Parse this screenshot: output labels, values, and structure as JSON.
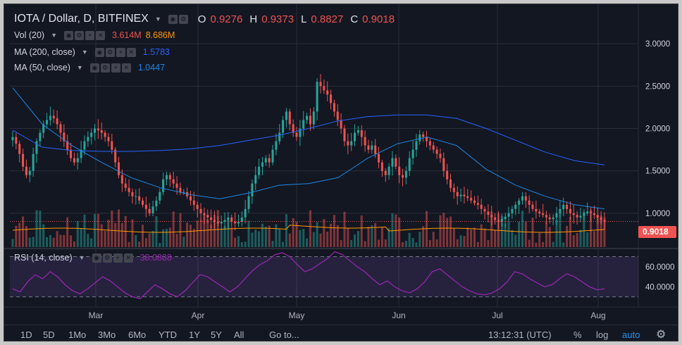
{
  "symbol": {
    "title": "IOTA / Dollar, D, BITFINEX",
    "open_label": "O",
    "open": "0.9276",
    "high_label": "H",
    "high": "0.9373",
    "low_label": "L",
    "low": "0.8827",
    "close_label": "C",
    "close": "0.9018"
  },
  "indicators": {
    "vol": {
      "label": "Vol (20)",
      "value1": "3.614M",
      "value2": "8.686M"
    },
    "ma200": {
      "label": "MA (200, close)",
      "value": "1.5783"
    },
    "ma50": {
      "label": "MA (50, close)",
      "value": "1.0447"
    },
    "rsi": {
      "label": "RSI (14, close)",
      "value": "38.0888"
    }
  },
  "price_badge": "0.9018",
  "price_axis_ticks": [
    "3.0000",
    "2.5000",
    "2.0000",
    "1.5000",
    "1.0000"
  ],
  "rsi_axis_ticks": [
    "60.0000",
    "40.0000"
  ],
  "time_axis_ticks": [
    "Mar",
    "Apr",
    "May",
    "Jun",
    "Jul",
    "Aug"
  ],
  "toolbar": {
    "ranges": [
      "1D",
      "5D",
      "1Mo",
      "3Mo",
      "6Mo",
      "YTD",
      "1Y",
      "5Y",
      "All"
    ],
    "goto": "Go to...",
    "time": "13:12:31 (UTC)",
    "percent": "%",
    "log": "log",
    "auto": "auto"
  },
  "colors": {
    "background": "#131722",
    "up": "#26a69a",
    "down": "#ef5350",
    "ma200": "#2962ff",
    "ma50": "#1e88e5",
    "vol_ma": "#ff9800",
    "rsi": "#9c27b0"
  },
  "chart_data": {
    "type": "candlestick",
    "title": "IOTA / Dollar, D, BITFINEX",
    "y_range": [
      0.6,
      3.4
    ],
    "rsi_range": [
      22,
      76
    ],
    "rsi_bands": [
      70,
      30
    ],
    "x_ticks": [
      "Mar",
      "Apr",
      "May",
      "Jun",
      "Jul",
      "Aug"
    ],
    "close_series": [
      1.9,
      1.82,
      1.7,
      1.55,
      1.45,
      1.5,
      1.7,
      1.85,
      1.95,
      2.05,
      2.1,
      2.15,
      2.12,
      2.05,
      1.95,
      1.85,
      1.75,
      1.65,
      1.6,
      1.65,
      1.75,
      1.85,
      1.9,
      1.95,
      2.0,
      1.98,
      1.95,
      1.9,
      1.85,
      1.75,
      1.6,
      1.45,
      1.35,
      1.3,
      1.25,
      1.2,
      1.2,
      1.15,
      1.1,
      1.05,
      1.0,
      1.08,
      1.15,
      1.25,
      1.4,
      1.45,
      1.4,
      1.35,
      1.3,
      1.25,
      1.25,
      1.2,
      1.15,
      1.1,
      1.05,
      1.0,
      0.98,
      0.95,
      0.92,
      0.9,
      0.88,
      0.9,
      0.92,
      0.95,
      0.9,
      0.88,
      0.9,
      0.95,
      1.05,
      1.2,
      1.35,
      1.45,
      1.55,
      1.6,
      1.65,
      1.6,
      1.75,
      1.85,
      1.95,
      2.1,
      2.2,
      2.05,
      1.95,
      1.9,
      2.0,
      2.1,
      2.15,
      2.05,
      2.2,
      2.55,
      2.5,
      2.45,
      2.4,
      2.3,
      2.2,
      2.1,
      2.0,
      1.85,
      1.8,
      1.85,
      1.95,
      1.98,
      1.9,
      1.8,
      1.75,
      1.8,
      1.7,
      1.6,
      1.5,
      1.45,
      1.55,
      1.65,
      1.55,
      1.45,
      1.42,
      1.5,
      1.65,
      1.75,
      1.85,
      1.93,
      1.9,
      1.85,
      1.8,
      1.75,
      1.7,
      1.65,
      1.5,
      1.4,
      1.3,
      1.25,
      1.2,
      1.22,
      1.2,
      1.18,
      1.15,
      1.12,
      1.1,
      1.05,
      1.02,
      0.98,
      0.95,
      0.92,
      0.9,
      0.93,
      0.96,
      1.0,
      1.05,
      1.1,
      1.15,
      1.2,
      1.15,
      1.1,
      1.05,
      1.02,
      1.0,
      0.98,
      0.95,
      0.93,
      0.95,
      1.0,
      1.05,
      1.1,
      1.05,
      1.0,
      0.98,
      0.95,
      0.97,
      1.0,
      1.02,
      1.0,
      0.98,
      0.95,
      0.92,
      0.9
    ],
    "ma200_series": [
      1.98,
      1.78,
      1.74,
      1.73,
      1.73,
      1.74,
      1.76,
      1.8,
      1.86,
      1.92,
      2.0,
      2.09,
      2.14,
      2.16,
      2.16,
      2.12,
      2.0,
      1.86,
      1.72,
      1.62,
      1.57
    ],
    "ma50_series": [
      2.48,
      2.05,
      1.8,
      1.6,
      1.42,
      1.3,
      1.22,
      1.17,
      1.24,
      1.33,
      1.35,
      1.42,
      1.65,
      1.82,
      1.9,
      1.8,
      1.52,
      1.33,
      1.2,
      1.1,
      1.05
    ],
    "rsi_series": [
      38,
      35,
      45,
      52,
      48,
      55,
      50,
      42,
      36,
      33,
      38,
      44,
      50,
      46,
      40,
      34,
      30,
      28,
      35,
      42,
      38,
      33,
      30,
      36,
      44,
      52,
      50,
      45,
      40,
      35,
      40,
      48,
      56,
      62,
      66,
      72,
      74,
      70,
      62,
      55,
      58,
      63,
      68,
      75,
      72,
      66,
      60,
      55,
      48,
      42,
      46,
      40,
      36,
      34,
      38,
      45,
      55,
      58,
      52,
      46,
      40,
      36,
      33,
      32,
      34,
      38,
      45,
      55,
      53,
      48,
      44,
      40,
      42,
      48,
      53,
      50,
      45,
      40,
      37,
      38
    ]
  }
}
